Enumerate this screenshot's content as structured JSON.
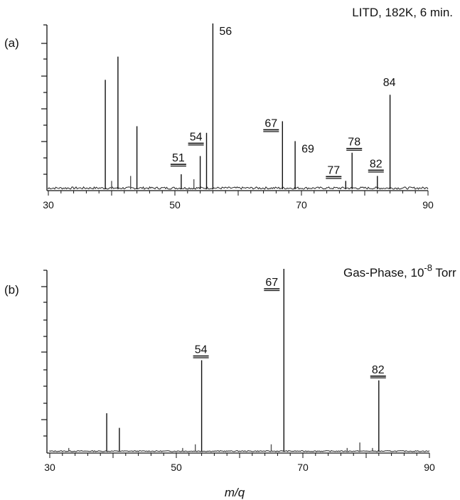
{
  "chart_data": [
    {
      "type": "bar",
      "panel_label": "(a)",
      "title": "LITD, 182K, 6 min.",
      "xlim": [
        30,
        90
      ],
      "ylim": [
        0,
        100
      ],
      "x_ticks": [
        30,
        50,
        70,
        90
      ],
      "xlabel": "",
      "peaks": [
        {
          "mz": 39,
          "value": 66,
          "label": "",
          "underlined": false
        },
        {
          "mz": 40,
          "value": 5,
          "label": "",
          "underlined": false
        },
        {
          "mz": 41,
          "value": 80,
          "label": "",
          "underlined": false
        },
        {
          "mz": 43,
          "value": 8,
          "label": "",
          "underlined": false
        },
        {
          "mz": 44,
          "value": 38,
          "label": "",
          "underlined": false
        },
        {
          "mz": 51,
          "value": 9,
          "label": "51",
          "underlined": true
        },
        {
          "mz": 53,
          "value": 6,
          "label": "",
          "underlined": false
        },
        {
          "mz": 54,
          "value": 20,
          "label": "54",
          "underlined": true
        },
        {
          "mz": 55,
          "value": 34,
          "label": "",
          "underlined": false
        },
        {
          "mz": 56,
          "value": 100,
          "label": "56",
          "underlined": false
        },
        {
          "mz": 67,
          "value": 41,
          "label": "67",
          "underlined": true
        },
        {
          "mz": 69,
          "value": 29,
          "label": "69",
          "underlined": false
        },
        {
          "mz": 77,
          "value": 5,
          "label": "77",
          "underlined": true
        },
        {
          "mz": 78,
          "value": 22,
          "label": "78",
          "underlined": true
        },
        {
          "mz": 82,
          "value": 8,
          "label": "82",
          "underlined": true
        },
        {
          "mz": 84,
          "value": 57,
          "label": "84",
          "underlined": false
        }
      ]
    },
    {
      "type": "bar",
      "panel_label": "(b)",
      "title_main": "Gas-Phase, 10",
      "title_sup": "-8",
      "title_tail": " Torr",
      "xlim": [
        30,
        90
      ],
      "ylim": [
        0,
        100
      ],
      "x_ticks": [
        30,
        50,
        70,
        90
      ],
      "xlabel": "m/q",
      "peaks": [
        {
          "mz": 33,
          "value": 2,
          "label": "",
          "underlined": false
        },
        {
          "mz": 39,
          "value": 21,
          "label": "",
          "underlined": false
        },
        {
          "mz": 41,
          "value": 13,
          "label": "",
          "underlined": false
        },
        {
          "mz": 51,
          "value": 2,
          "label": "",
          "underlined": false
        },
        {
          "mz": 53,
          "value": 4,
          "label": "",
          "underlined": false
        },
        {
          "mz": 54,
          "value": 50,
          "label": "54",
          "underlined": true
        },
        {
          "mz": 65,
          "value": 4,
          "label": "",
          "underlined": false
        },
        {
          "mz": 67,
          "value": 100,
          "label": "67",
          "underlined": true
        },
        {
          "mz": 77,
          "value": 2,
          "label": "",
          "underlined": false
        },
        {
          "mz": 79,
          "value": 5,
          "label": "",
          "underlined": false
        },
        {
          "mz": 81,
          "value": 2,
          "label": "",
          "underlined": false
        },
        {
          "mz": 82,
          "value": 39,
          "label": "82",
          "underlined": true
        }
      ]
    }
  ]
}
